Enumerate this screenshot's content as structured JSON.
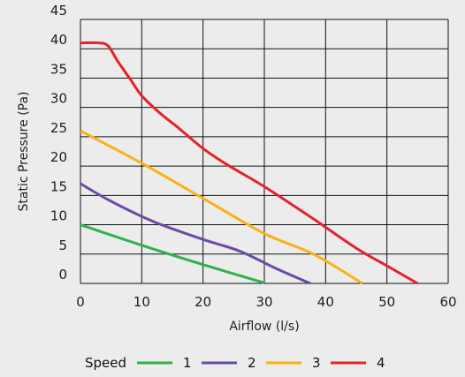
{
  "chart_data": {
    "type": "line",
    "xlabel": "Airflow (l/s)",
    "ylabel": "Static Pressure (Pa)",
    "xlim": [
      0,
      60
    ],
    "ylim": [
      0,
      45
    ],
    "x_ticks": [
      "0",
      "10",
      "20",
      "30",
      "40",
      "50",
      "60"
    ],
    "y_ticks": [
      "0",
      "5",
      "10",
      "15",
      "20",
      "25",
      "30",
      "35",
      "40",
      "45"
    ],
    "grid": true,
    "legend_title": "Speed",
    "legend_position": "bottom",
    "series": [
      {
        "name": "1",
        "color": "#2db34a",
        "points": [
          [
            0,
            10
          ],
          [
            10,
            6.5
          ],
          [
            20,
            3.2
          ],
          [
            30,
            0.1
          ]
        ]
      },
      {
        "name": "2",
        "color": "#6a4aa8",
        "points": [
          [
            0,
            17
          ],
          [
            5,
            14
          ],
          [
            12,
            10.5
          ],
          [
            20,
            7.5
          ],
          [
            26,
            5.5
          ],
          [
            32,
            2.5
          ],
          [
            37.5,
            0
          ]
        ]
      },
      {
        "name": "3",
        "color": "#fbb016",
        "points": [
          [
            0,
            26
          ],
          [
            10,
            20.5
          ],
          [
            20,
            14.5
          ],
          [
            30,
            8.5
          ],
          [
            38,
            5
          ],
          [
            46,
            0
          ]
        ]
      },
      {
        "name": "4",
        "color": "#e4222a",
        "points": [
          [
            0,
            41
          ],
          [
            3,
            41
          ],
          [
            4.5,
            40.5
          ],
          [
            6,
            38
          ],
          [
            8,
            35
          ],
          [
            10,
            32
          ],
          [
            13,
            29
          ],
          [
            16,
            26.5
          ],
          [
            20,
            23
          ],
          [
            24,
            20.2
          ],
          [
            30,
            16.5
          ],
          [
            38,
            11
          ],
          [
            45,
            6
          ],
          [
            50,
            3
          ],
          [
            55,
            0
          ]
        ]
      }
    ]
  }
}
